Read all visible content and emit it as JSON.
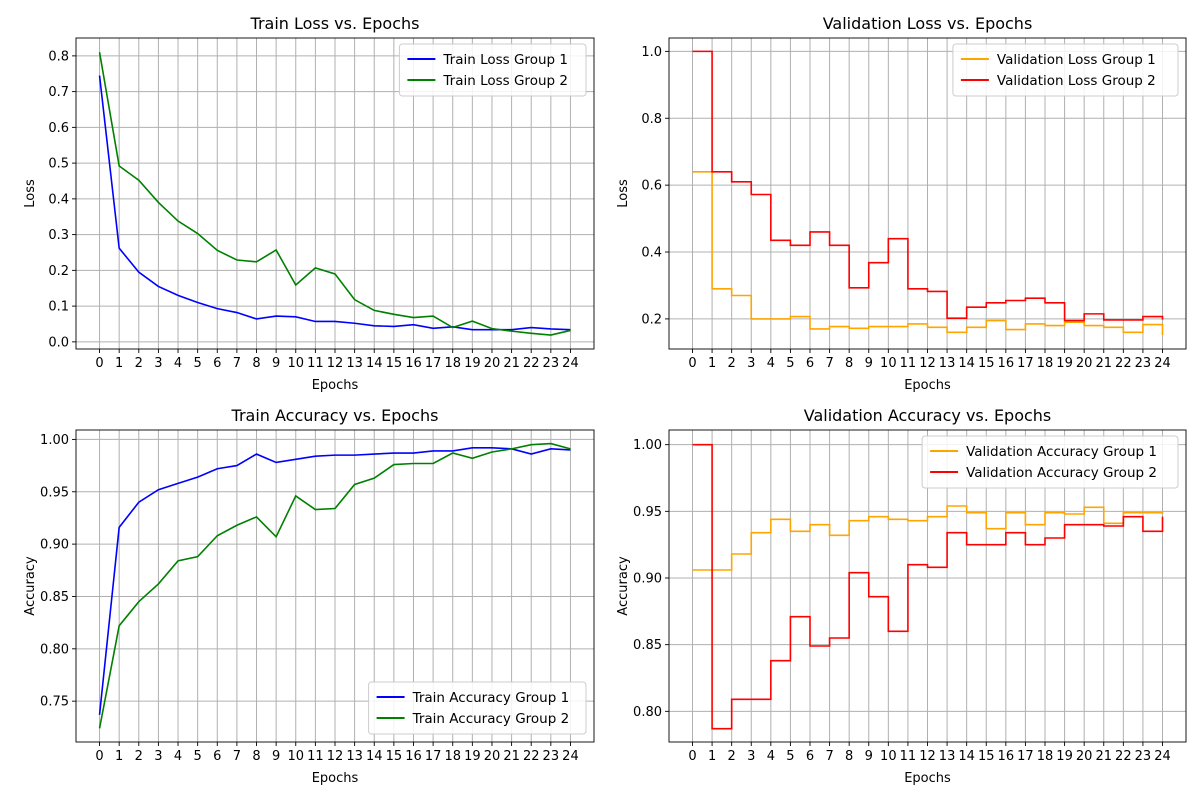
{
  "chart_data": [
    {
      "type": "line",
      "title": "Train Loss vs. Epochs",
      "xlabel": "Epochs",
      "ylabel": "Loss",
      "x": [
        0,
        1,
        2,
        3,
        4,
        5,
        6,
        7,
        8,
        9,
        10,
        11,
        12,
        13,
        14,
        15,
        16,
        17,
        18,
        19,
        20,
        21,
        22,
        23,
        24
      ],
      "xticks": [
        "0",
        "1",
        "2",
        "3",
        "4",
        "5",
        "6",
        "7",
        "8",
        "9",
        "10",
        "11",
        "12",
        "13",
        "14",
        "15",
        "16",
        "17",
        "18",
        "19",
        "20",
        "21",
        "22",
        "23",
        "24"
      ],
      "xlim": [
        -1.2,
        25.2
      ],
      "ylim": [
        -0.02,
        0.85
      ],
      "yticks": [
        0.0,
        0.1,
        0.2,
        0.3,
        0.4,
        0.5,
        0.6,
        0.7,
        0.8
      ],
      "ytick_labels": [
        "0.0",
        "0.1",
        "0.2",
        "0.3",
        "0.4",
        "0.5",
        "0.6",
        "0.7",
        "0.8"
      ],
      "grid": true,
      "legend_position": "top-right",
      "series": [
        {
          "name": "Train Loss Group 1",
          "color": "#0000ff",
          "step": false,
          "values": [
            0.745,
            0.262,
            0.195,
            0.155,
            0.13,
            0.11,
            0.093,
            0.082,
            0.064,
            0.072,
            0.07,
            0.057,
            0.057,
            0.052,
            0.045,
            0.043,
            0.048,
            0.038,
            0.042,
            0.034,
            0.034,
            0.034,
            0.04,
            0.036,
            0.034
          ]
        },
        {
          "name": "Train Loss Group 2",
          "color": "#008000",
          "step": false,
          "values": [
            0.81,
            0.492,
            0.452,
            0.39,
            0.338,
            0.303,
            0.256,
            0.229,
            0.224,
            0.257,
            0.159,
            0.207,
            0.19,
            0.118,
            0.088,
            0.077,
            0.068,
            0.072,
            0.04,
            0.058,
            0.037,
            0.03,
            0.024,
            0.019,
            0.032
          ]
        }
      ]
    },
    {
      "type": "line",
      "title": "Validation Loss vs. Epochs",
      "xlabel": "Epochs",
      "ylabel": "Loss",
      "x": [
        0,
        1,
        2,
        3,
        4,
        5,
        6,
        7,
        8,
        9,
        10,
        11,
        12,
        13,
        14,
        15,
        16,
        17,
        18,
        19,
        20,
        21,
        22,
        23,
        24
      ],
      "xticks": [
        "0",
        "1",
        "2",
        "3",
        "4",
        "5",
        "6",
        "7",
        "8",
        "9",
        "10",
        "11",
        "12",
        "13",
        "14",
        "15",
        "16",
        "17",
        "18",
        "19",
        "20",
        "21",
        "22",
        "23",
        "24"
      ],
      "xlim": [
        -1.2,
        25.2
      ],
      "ylim": [
        0.11,
        1.04
      ],
      "yticks": [
        0.2,
        0.4,
        0.6,
        0.8,
        1.0
      ],
      "ytick_labels": [
        "0.2",
        "0.4",
        "0.6",
        "0.8",
        "1.0"
      ],
      "grid": true,
      "legend_position": "top-right",
      "series": [
        {
          "name": "Validation Loss Group 1",
          "color": "#ffa500",
          "step": true,
          "values": [
            0.64,
            0.29,
            0.27,
            0.2,
            0.2,
            0.207,
            0.17,
            0.177,
            0.172,
            0.177,
            0.177,
            0.185,
            0.175,
            0.16,
            0.175,
            0.195,
            0.168,
            0.185,
            0.18,
            0.19,
            0.18,
            0.175,
            0.16,
            0.183,
            0.152
          ]
        },
        {
          "name": "Validation Loss Group 2",
          "color": "#ff0000",
          "step": true,
          "values": [
            1.0,
            0.64,
            0.61,
            0.572,
            0.435,
            0.42,
            0.46,
            0.42,
            0.293,
            0.368,
            0.44,
            0.29,
            0.282,
            0.202,
            0.235,
            0.248,
            0.255,
            0.262,
            0.248,
            0.195,
            0.215,
            0.197,
            0.197,
            0.207,
            0.198
          ]
        }
      ]
    },
    {
      "type": "line",
      "title": "Train Accuracy vs. Epochs",
      "xlabel": "Epochs",
      "ylabel": "Accuracy",
      "x": [
        0,
        1,
        2,
        3,
        4,
        5,
        6,
        7,
        8,
        9,
        10,
        11,
        12,
        13,
        14,
        15,
        16,
        17,
        18,
        19,
        20,
        21,
        22,
        23,
        24
      ],
      "xticks": [
        "0",
        "1",
        "2",
        "3",
        "4",
        "5",
        "6",
        "7",
        "8",
        "9",
        "10",
        "11",
        "12",
        "13",
        "14",
        "15",
        "16",
        "17",
        "18",
        "19",
        "20",
        "21",
        "22",
        "23",
        "24"
      ],
      "xlim": [
        -1.2,
        25.2
      ],
      "ylim": [
        0.711,
        1.009
      ],
      "yticks": [
        0.75,
        0.8,
        0.85,
        0.9,
        0.95,
        1.0
      ],
      "ytick_labels": [
        "0.75",
        "0.80",
        "0.85",
        "0.90",
        "0.95",
        "1.00"
      ],
      "grid": true,
      "legend_position": "bottom-right",
      "series": [
        {
          "name": "Train Accuracy Group 1",
          "color": "#0000ff",
          "step": false,
          "values": [
            0.737,
            0.916,
            0.94,
            0.952,
            0.958,
            0.964,
            0.972,
            0.975,
            0.986,
            0.978,
            0.981,
            0.984,
            0.985,
            0.985,
            0.986,
            0.987,
            0.987,
            0.989,
            0.989,
            0.992,
            0.992,
            0.991,
            0.986,
            0.991,
            0.99
          ]
        },
        {
          "name": "Train Accuracy Group 2",
          "color": "#008000",
          "step": false,
          "values": [
            0.724,
            0.822,
            0.845,
            0.862,
            0.884,
            0.888,
            0.908,
            0.918,
            0.926,
            0.907,
            0.946,
            0.933,
            0.934,
            0.957,
            0.963,
            0.976,
            0.977,
            0.977,
            0.987,
            0.982,
            0.988,
            0.991,
            0.995,
            0.996,
            0.991
          ]
        }
      ]
    },
    {
      "type": "line",
      "title": "Validation Accuracy vs. Epochs",
      "xlabel": "Epochs",
      "ylabel": "Accuracy",
      "x": [
        0,
        1,
        2,
        3,
        4,
        5,
        6,
        7,
        8,
        9,
        10,
        11,
        12,
        13,
        14,
        15,
        16,
        17,
        18,
        19,
        20,
        21,
        22,
        23,
        24
      ],
      "xticks": [
        "0",
        "1",
        "2",
        "3",
        "4",
        "5",
        "6",
        "7",
        "8",
        "9",
        "10",
        "11",
        "12",
        "13",
        "14",
        "15",
        "16",
        "17",
        "18",
        "19",
        "20",
        "21",
        "22",
        "23",
        "24"
      ],
      "xlim": [
        -1.2,
        25.2
      ],
      "ylim": [
        0.777,
        1.011
      ],
      "yticks": [
        0.8,
        0.85,
        0.9,
        0.95,
        1.0
      ],
      "ytick_labels": [
        "0.80",
        "0.85",
        "0.90",
        "0.95",
        "1.00"
      ],
      "grid": true,
      "legend_position": "top-right",
      "series": [
        {
          "name": "Validation Accuracy Group 1",
          "color": "#ffa500",
          "step": true,
          "values": [
            0.906,
            0.906,
            0.918,
            0.934,
            0.944,
            0.935,
            0.94,
            0.932,
            0.943,
            0.946,
            0.944,
            0.943,
            0.946,
            0.954,
            0.949,
            0.937,
            0.949,
            0.94,
            0.949,
            0.948,
            0.953,
            0.941,
            0.949,
            0.949,
            0.948
          ]
        },
        {
          "name": "Validation Accuracy Group 2",
          "color": "#ff0000",
          "step": true,
          "values": [
            1.0,
            0.787,
            0.809,
            0.809,
            0.838,
            0.871,
            0.849,
            0.855,
            0.904,
            0.886,
            0.86,
            0.91,
            0.908,
            0.934,
            0.925,
            0.925,
            0.934,
            0.925,
            0.93,
            0.94,
            0.94,
            0.939,
            0.946,
            0.935,
            0.946
          ]
        }
      ]
    }
  ]
}
